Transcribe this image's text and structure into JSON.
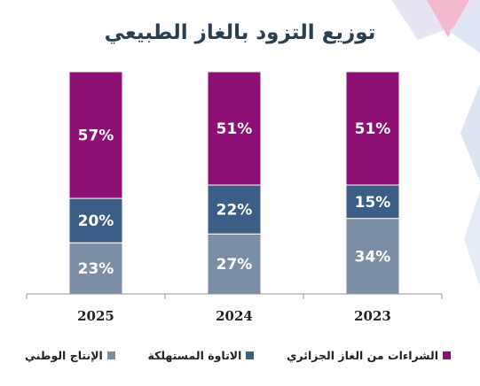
{
  "chart_data": {
    "type": "bar",
    "stacked": true,
    "title": "توزيع التزود بالغاز الطبيعي",
    "categories": [
      "2025",
      "2024",
      "2023"
    ],
    "series": [
      {
        "name": "الإنتاج الوطني",
        "values": [
          23,
          27,
          34
        ],
        "color": "#7c8ea5"
      },
      {
        "name": "الاتاوة المستهلكة",
        "values": [
          20,
          22,
          15
        ],
        "color": "#3b5d86"
      },
      {
        "name": "الشراءات من الغاز الجزائري",
        "values": [
          57,
          51,
          51
        ],
        "color": "#8e0f73"
      }
    ],
    "value_suffix": "%",
    "ylim": [
      0,
      100
    ],
    "legend_position": "bottom",
    "grid": false
  }
}
